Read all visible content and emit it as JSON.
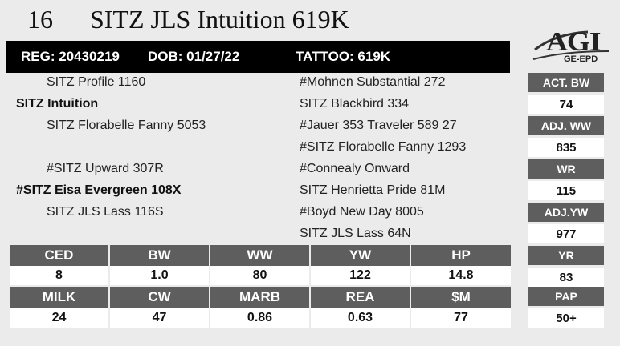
{
  "lot": {
    "number": "16",
    "name": "SITZ JLS Intuition 619K"
  },
  "id_bar": {
    "reg": "REG: 20430219",
    "dob": "DOB: 01/27/22",
    "tattoo": "TATTOO: 619K"
  },
  "logo": {
    "main": "AGI",
    "sub": "GE-EPD"
  },
  "pedigree": {
    "sire_sire": "SITZ Profile 1160",
    "sire": "SITZ Intuition",
    "sire_dam": "SITZ Florabelle Fanny 5053",
    "dam_sire": "#SITZ Upward 307R",
    "dam": "#SITZ Eisa Evergreen 108X",
    "dam_dam": "SITZ JLS Lass 116S",
    "right": [
      "#Mohnen Substantial 272",
      "SITZ Blackbird 334",
      "#Jauer 353 Traveler 589 27",
      "#SITZ Florabelle Fanny 1293",
      "#Connealy Onward",
      "SITZ Henrietta Pride 81M",
      "#Boyd New Day 8005",
      "SITZ JLS Lass 64N"
    ]
  },
  "side_stats": [
    {
      "label": "ACT. BW",
      "value": "74"
    },
    {
      "label": "ADJ. WW",
      "value": "835"
    },
    {
      "label": "WR",
      "value": "115"
    },
    {
      "label": "ADJ.YW",
      "value": "977"
    },
    {
      "label": "YR",
      "value": "83"
    },
    {
      "label": "PAP",
      "value": "50+"
    }
  ],
  "epd_row1": {
    "headers": [
      "CED",
      "BW",
      "WW",
      "YW",
      "HP"
    ],
    "values": [
      "8",
      "1.0",
      "80",
      "122",
      "14.8"
    ]
  },
  "epd_row2": {
    "headers": [
      "MILK",
      "CW",
      "MARB",
      "REA",
      "$M"
    ],
    "values": [
      "24",
      "47",
      "0.86",
      "0.63",
      "77"
    ]
  }
}
